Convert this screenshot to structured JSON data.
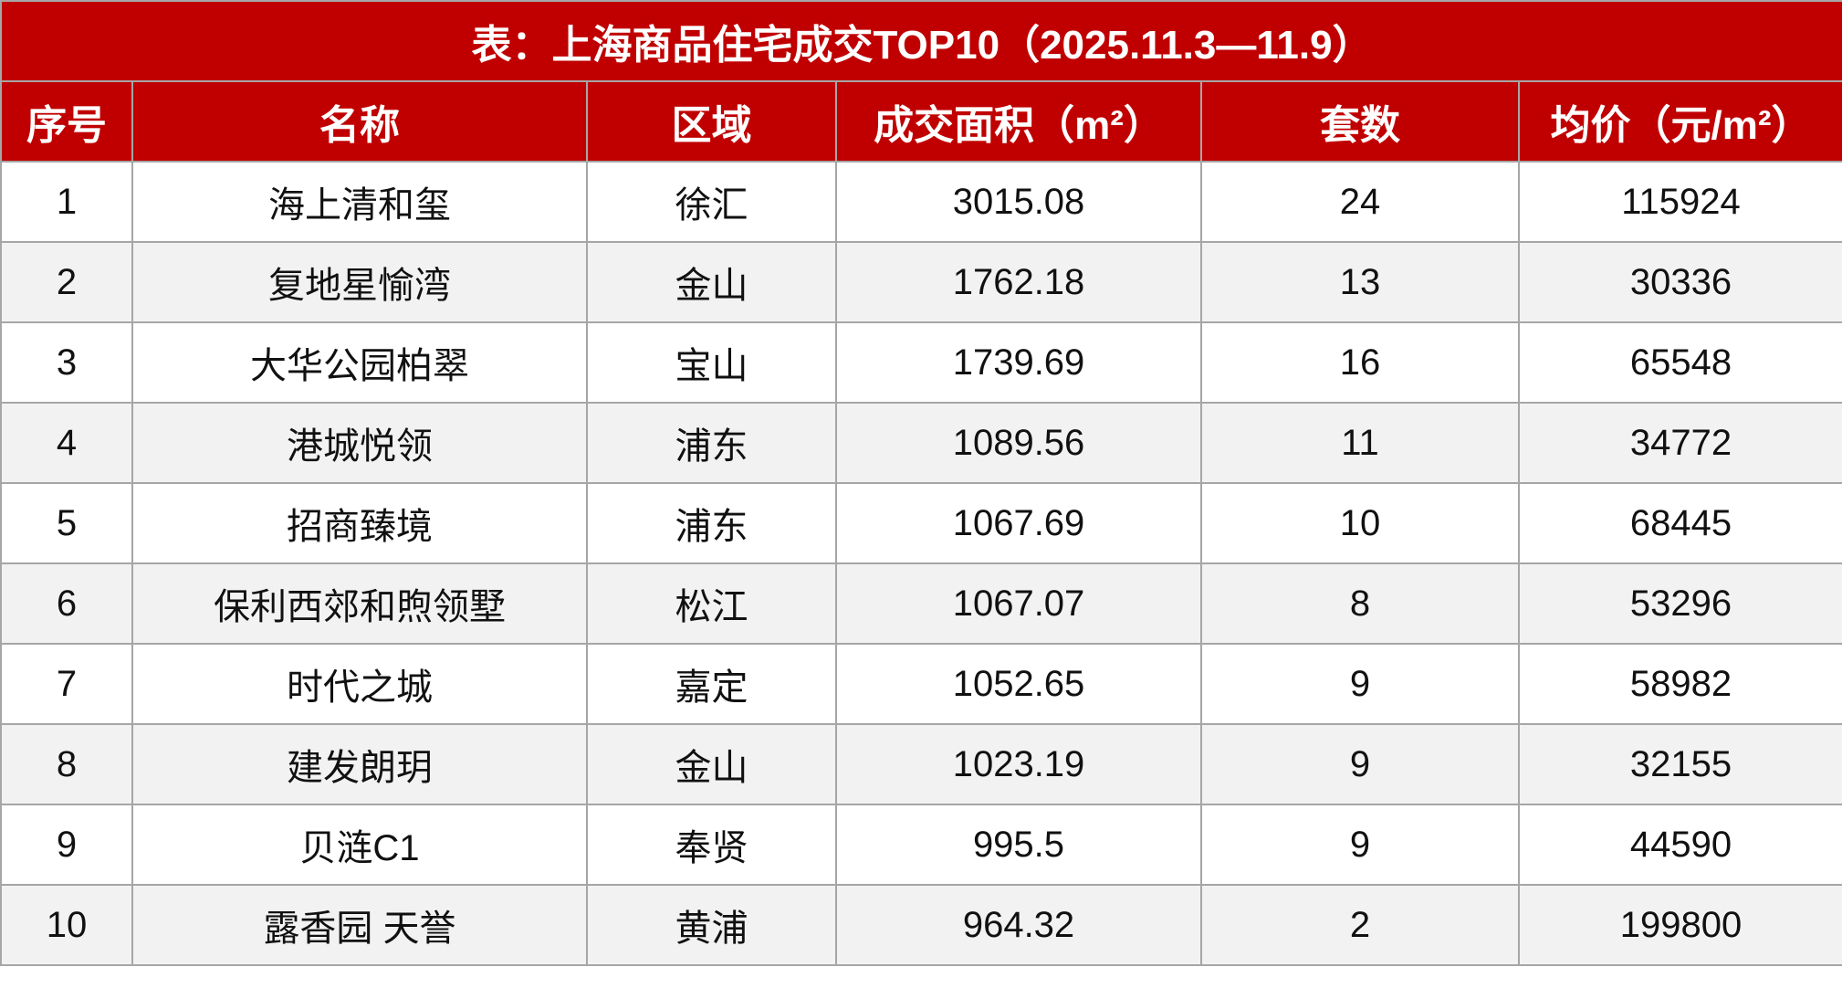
{
  "title": "表：上海商品住宅成交TOP10（2025.11.3—11.9）",
  "colors": {
    "header_bg": "#c00000",
    "header_text": "#ffffff",
    "alt_row": "#f2f2f2",
    "border": "#a6a6a6"
  },
  "columns": [
    "序号",
    "名称",
    "区域",
    "成交面积（m²）",
    "套数",
    "均价（元/m²）"
  ],
  "rows": [
    [
      "1",
      "海上清和玺",
      "徐汇",
      "3015.08",
      "24",
      "115924"
    ],
    [
      "2",
      "复地星愉湾",
      "金山",
      "1762.18",
      "13",
      "30336"
    ],
    [
      "3",
      "大华公园柏翠",
      "宝山",
      "1739.69",
      "16",
      "65548"
    ],
    [
      "4",
      "港城悦领",
      "浦东",
      "1089.56",
      "11",
      "34772"
    ],
    [
      "5",
      "招商臻境",
      "浦东",
      "1067.69",
      "10",
      "68445"
    ],
    [
      "6",
      "保利西郊和煦领墅",
      "松江",
      "1067.07",
      "8",
      "53296"
    ],
    [
      "7",
      "时代之城",
      "嘉定",
      "1052.65",
      "9",
      "58982"
    ],
    [
      "8",
      "建发朗玥",
      "金山",
      "1023.19",
      "9",
      "32155"
    ],
    [
      "9",
      "贝涟C1",
      "奉贤",
      "995.5",
      "9",
      "44590"
    ],
    [
      "10",
      "露香园 天誉",
      "黄浦",
      "964.32",
      "2",
      "199800"
    ]
  ]
}
